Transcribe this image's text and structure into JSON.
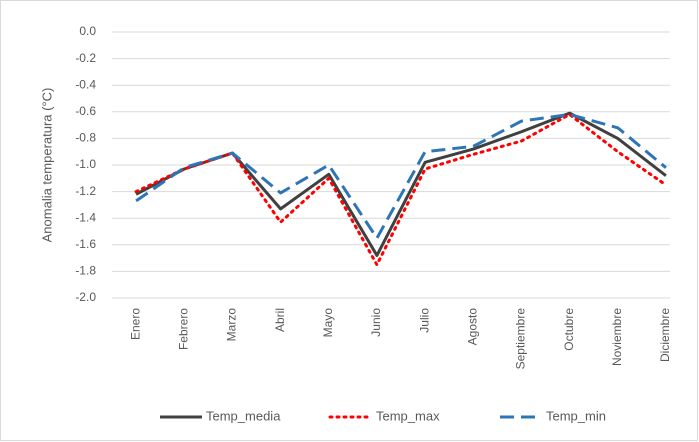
{
  "chart_data": {
    "type": "line",
    "y_label": "Anomalia temperatura (°C)",
    "categories": [
      "Enero",
      "Febrero",
      "Marzo",
      "Abril",
      "Mayo",
      "Junio",
      "Julio",
      "Agosto",
      "Septiembre",
      "Octubre",
      "Noviembre",
      "Diciembre"
    ],
    "series": [
      {
        "name": "Temp_media",
        "color": "#404040",
        "line_style": "solid",
        "values": [
          -1.22,
          -1.03,
          -0.91,
          -1.33,
          -1.07,
          -1.68,
          -0.98,
          -0.88,
          -0.75,
          -0.61,
          -0.8,
          -1.08
        ]
      },
      {
        "name": "Temp_max",
        "color": "#ff0000",
        "line_style": "dotted",
        "values": [
          -1.2,
          -1.03,
          -0.91,
          -1.43,
          -1.1,
          -1.75,
          -1.03,
          -0.92,
          -0.82,
          -0.62,
          -0.9,
          -1.15
        ]
      },
      {
        "name": "Temp_min",
        "color": "#2e75b6",
        "line_style": "dashed",
        "values": [
          -1.27,
          -1.02,
          -0.91,
          -1.21,
          -1.0,
          -1.55,
          -0.9,
          -0.86,
          -0.67,
          -0.62,
          -0.72,
          -1.02
        ]
      }
    ],
    "ylim": [
      -2.0,
      0.0
    ],
    "yticks": [
      {
        "value": 0,
        "label": "0.0"
      },
      -0.2,
      -0.4,
      -0.6,
      -0.8,
      {
        "value": -1,
        "label": "-1.0"
      },
      -1.2,
      -1.4,
      -1.6,
      -1.8,
      {
        "value": -2,
        "label": "-2.0"
      }
    ],
    "grid": true
  }
}
